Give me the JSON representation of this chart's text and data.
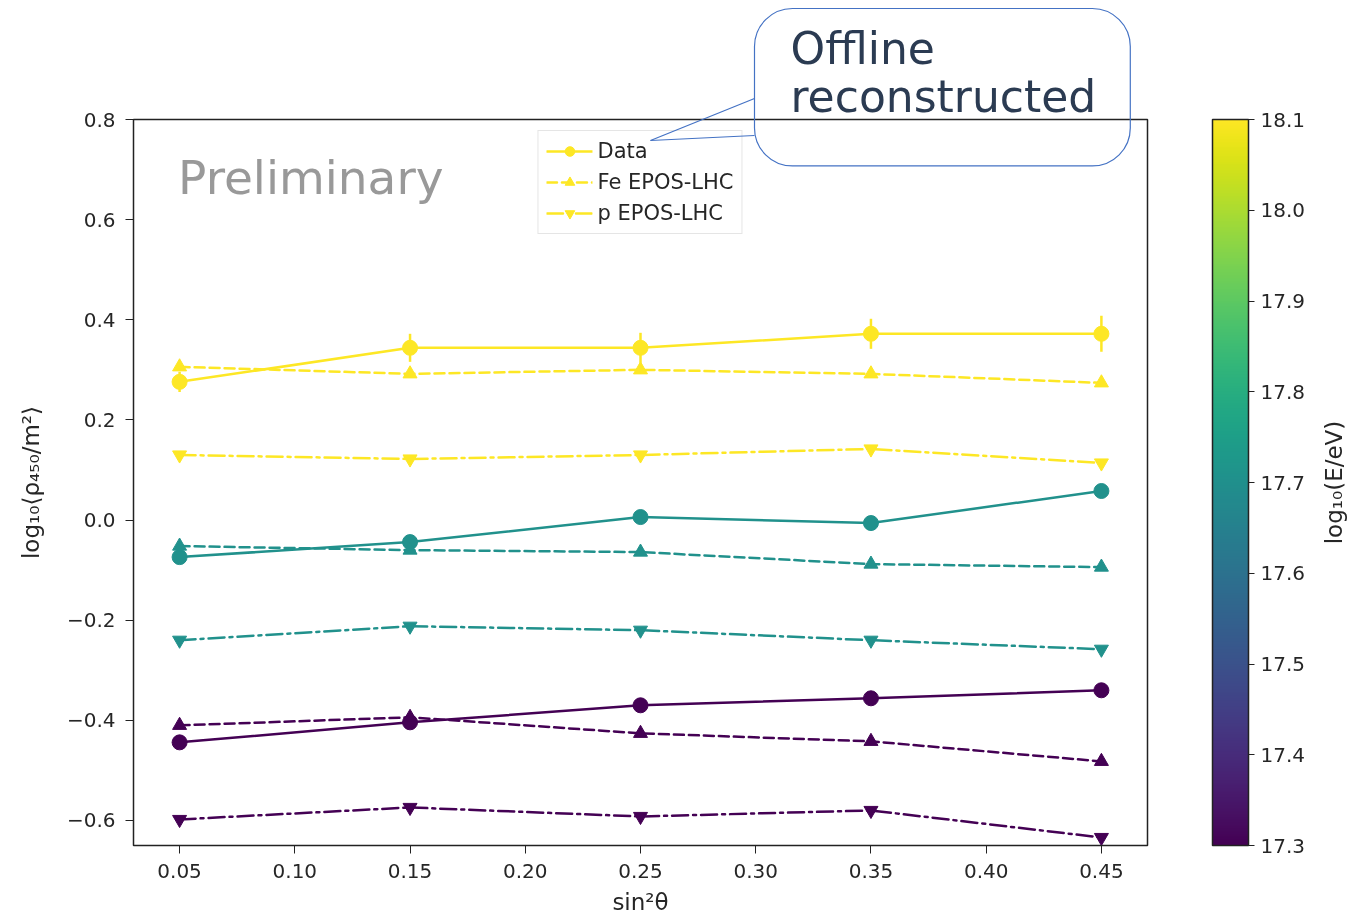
{
  "chart_data": {
    "type": "line",
    "xlabel": "sin²θ",
    "ylabel": "log₁₀⟨ρ₄₅₀/m²⟩",
    "clabel": "log₁₀(E/eV)",
    "x": [
      0.05,
      0.15,
      0.25,
      0.35,
      0.45
    ],
    "xlim": [
      0.03,
      0.47
    ],
    "xticks": [
      0.05,
      {
        "value": 0.1,
        "label": "0.10"
      },
      0.15,
      {
        "value": 0.2,
        "label": "0.20"
      },
      0.25,
      {
        "value": 0.3,
        "label": "0.30"
      },
      0.35,
      {
        "value": 0.4,
        "label": "0.40"
      },
      0.45
    ],
    "ylim": [
      -0.65,
      0.8
    ],
    "yticks": [
      {
        "value": -0.6,
        "label": "−0.6"
      },
      {
        "value": -0.4,
        "label": "−0.4"
      },
      {
        "value": -0.2,
        "label": "−0.2"
      },
      {
        "value": 0,
        "label": "0.0"
      },
      0.2,
      0.4,
      0.6,
      0.8
    ],
    "clim": [
      17.3,
      18.1
    ],
    "cticks": [
      17.3,
      17.4,
      17.5,
      17.6,
      17.7,
      17.8,
      17.9,
      {
        "value": 18,
        "label": "18.0"
      },
      18.1
    ],
    "legend": "top center",
    "annotations": [
      "Preliminary",
      "Offline reconstructed"
    ],
    "series": [
      {
        "name": "Data",
        "color": "#fde725",
        "marker": "circle",
        "line_style": "solid",
        "values": [
          0.276,
          0.344,
          0.344,
          0.372,
          0.372
        ],
        "errors": [
          0.02,
          0.028,
          0.03,
          0.03,
          0.036
        ]
      },
      {
        "name": "Fe EPOS-LHC",
        "color": "#fde725",
        "marker": "triangle",
        "line_style": "dashed",
        "values": [
          0.306,
          0.292,
          0.3,
          0.292,
          0.274
        ]
      },
      {
        "name": "p EPOS-LHC",
        "color": "#fde725",
        "marker": "triangle",
        "line_style": "dashdot",
        "values": [
          0.13,
          0.122,
          0.13,
          0.142,
          0.114
        ]
      },
      {
        "color": "#21918c",
        "marker": "circle",
        "line_style": "solid",
        "values": [
          -0.074,
          -0.044,
          0.006,
          -0.006,
          0.058
        ]
      },
      {
        "color": "#21918c",
        "marker": "triangle",
        "line_style": "dashed",
        "values": [
          -0.052,
          -0.06,
          -0.064,
          -0.088,
          -0.094
        ]
      },
      {
        "color": "#21918c",
        "marker": "triangle",
        "line_style": "dashdot",
        "values": [
          -0.24,
          -0.212,
          -0.22,
          -0.24,
          -0.258
        ]
      },
      {
        "color": "#440154",
        "marker": "circle",
        "line_style": "solid",
        "values": [
          -0.444,
          -0.404,
          -0.37,
          -0.356,
          -0.34
        ]
      },
      {
        "color": "#440154",
        "marker": "triangle",
        "line_style": "dashed",
        "values": [
          -0.41,
          -0.394,
          -0.426,
          -0.442,
          -0.482
        ]
      },
      {
        "color": "#440154",
        "marker": "triangle",
        "line_style": "dashdot",
        "values": [
          -0.598,
          -0.574,
          -0.592,
          -0.58,
          -0.634
        ]
      }
    ]
  }
}
